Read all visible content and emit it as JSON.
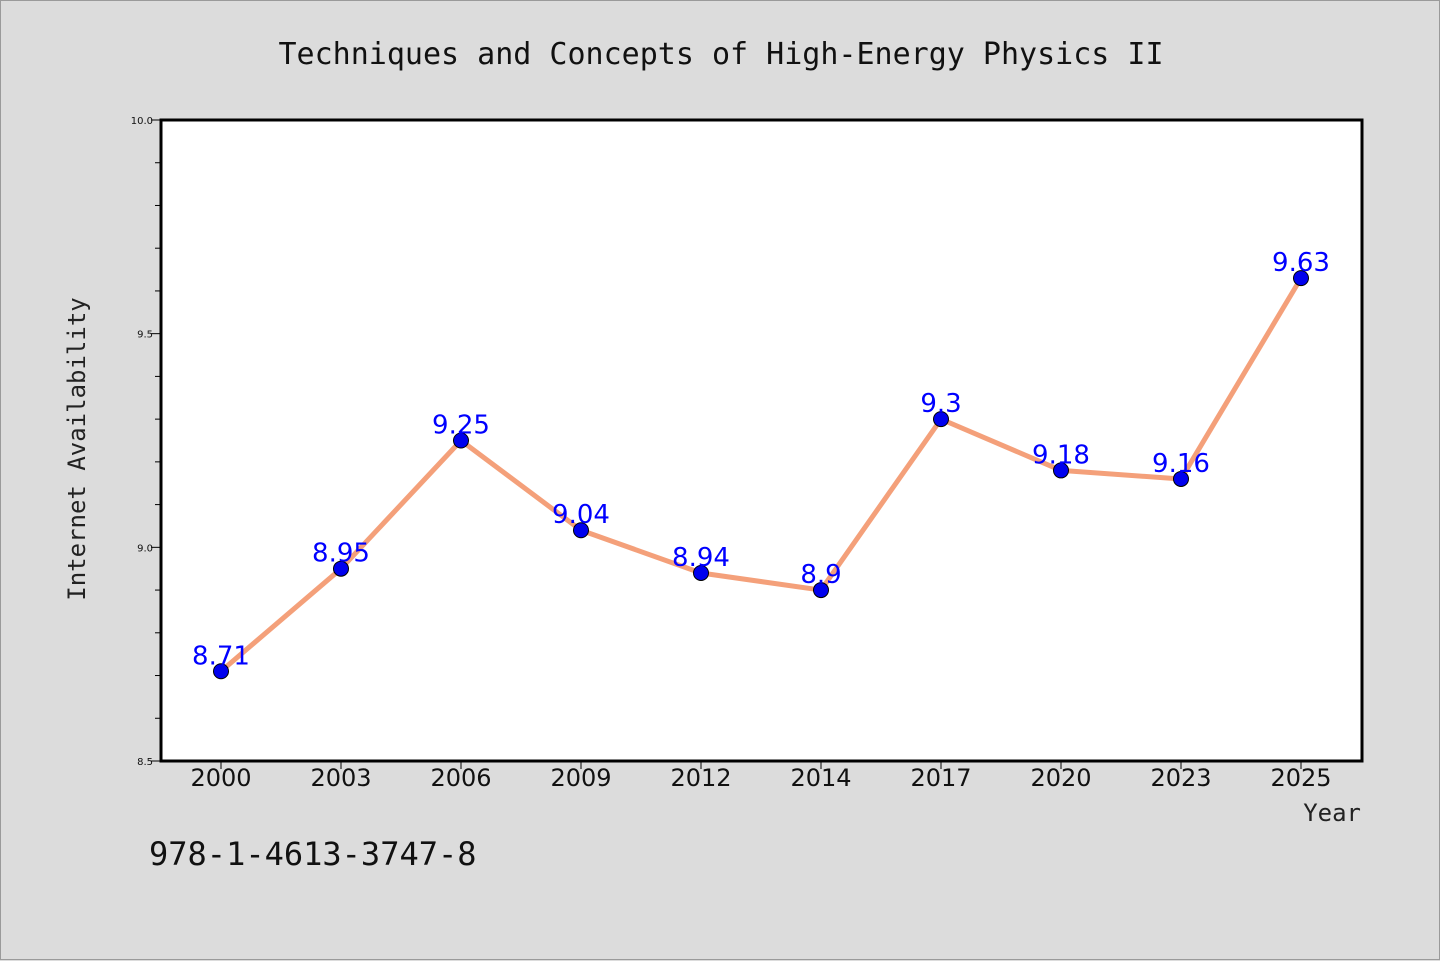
{
  "chart_data": {
    "type": "line",
    "title": "Techniques and Concepts of High-Energy Physics II",
    "xlabel": "Year",
    "ylabel": "Internet Availability",
    "categories": [
      "2000",
      "2003",
      "2006",
      "2009",
      "2012",
      "2014",
      "2017",
      "2020",
      "2023",
      "2025"
    ],
    "series": [
      {
        "values": [
          8.71,
          8.95,
          9.25,
          9.04,
          8.94,
          8.9,
          9.3,
          9.18,
          9.16,
          9.63
        ]
      }
    ],
    "data_labels": [
      "8.71",
      "8.95",
      "9.25",
      "9.04",
      "8.94",
      "8.9",
      "9.3",
      "9.18",
      "9.16",
      "9.63"
    ],
    "ylim": [
      8.5,
      10.0
    ],
    "yticks": [
      "8.5",
      "9.0",
      "9.5",
      "10.0"
    ],
    "grid": false,
    "line_color": "#f4a07a",
    "marker_color": "#0000ee",
    "label_color": "#0000ff"
  },
  "footer": {
    "isbn": "978-1-4613-3747-8"
  }
}
